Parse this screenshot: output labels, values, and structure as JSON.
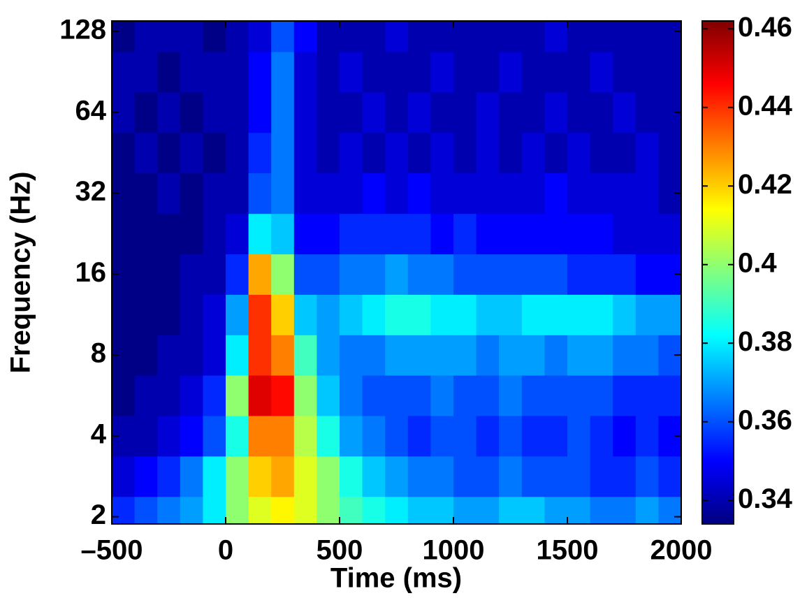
{
  "chart_data": {
    "type": "heatmap",
    "xlabel": "Time (ms)",
    "ylabel": "Frequency (Hz)",
    "xlim": [
      -500,
      2000
    ],
    "xticks": [
      {
        "value": -500,
        "label": "–500"
      },
      0,
      500,
      1000,
      1500,
      2000
    ],
    "ylim": [
      1.88,
      140
    ],
    "yticks": [
      2,
      4,
      8,
      16,
      32,
      64,
      128
    ],
    "ylog": true,
    "colormap": "jet",
    "clim": [
      0.334,
      0.462
    ],
    "cticks": [
      0.34,
      0.36,
      0.38,
      0.4,
      0.42,
      0.44,
      0.46
    ],
    "x": [
      -450,
      -350,
      -250,
      -150,
      -50,
      50,
      150,
      250,
      350,
      450,
      550,
      650,
      750,
      850,
      950,
      1050,
      1150,
      1250,
      1350,
      1450,
      1550,
      1650,
      1750,
      1850,
      1950
    ],
    "y": [
      2,
      2.83,
      4,
      5.66,
      8,
      11.3,
      16,
      22.6,
      32,
      45.3,
      64,
      90.5,
      128
    ],
    "z": [
      [
        0.355,
        0.36,
        0.365,
        0.37,
        0.38,
        0.4,
        0.41,
        0.415,
        0.41,
        0.4,
        0.39,
        0.385,
        0.38,
        0.375,
        0.375,
        0.37,
        0.37,
        0.375,
        0.375,
        0.37,
        0.37,
        0.365,
        0.365,
        0.37,
        0.365
      ],
      [
        0.345,
        0.35,
        0.355,
        0.365,
        0.38,
        0.4,
        0.42,
        0.425,
        0.41,
        0.4,
        0.385,
        0.375,
        0.37,
        0.365,
        0.365,
        0.36,
        0.36,
        0.365,
        0.36,
        0.36,
        0.36,
        0.355,
        0.355,
        0.36,
        0.355
      ],
      [
        0.34,
        0.34,
        0.345,
        0.35,
        0.36,
        0.385,
        0.43,
        0.43,
        0.405,
        0.385,
        0.37,
        0.365,
        0.36,
        0.355,
        0.36,
        0.36,
        0.355,
        0.36,
        0.355,
        0.355,
        0.36,
        0.355,
        0.35,
        0.355,
        0.35
      ],
      [
        0.335,
        0.34,
        0.34,
        0.345,
        0.355,
        0.4,
        0.45,
        0.445,
        0.4,
        0.375,
        0.365,
        0.36,
        0.36,
        0.36,
        0.365,
        0.36,
        0.36,
        0.365,
        0.36,
        0.36,
        0.36,
        0.36,
        0.355,
        0.355,
        0.355
      ],
      [
        0.335,
        0.335,
        0.34,
        0.34,
        0.345,
        0.38,
        0.44,
        0.43,
        0.39,
        0.37,
        0.365,
        0.365,
        0.37,
        0.37,
        0.37,
        0.37,
        0.365,
        0.37,
        0.37,
        0.365,
        0.37,
        0.37,
        0.365,
        0.365,
        0.36
      ],
      [
        0.335,
        0.335,
        0.335,
        0.34,
        0.345,
        0.37,
        0.44,
        0.42,
        0.375,
        0.37,
        0.375,
        0.38,
        0.385,
        0.385,
        0.38,
        0.38,
        0.375,
        0.375,
        0.38,
        0.38,
        0.38,
        0.38,
        0.375,
        0.37,
        0.37
      ],
      [
        0.335,
        0.335,
        0.335,
        0.34,
        0.34,
        0.355,
        0.425,
        0.4,
        0.36,
        0.36,
        0.365,
        0.365,
        0.37,
        0.365,
        0.365,
        0.36,
        0.36,
        0.36,
        0.36,
        0.36,
        0.355,
        0.355,
        0.355,
        0.35,
        0.35
      ],
      [
        0.335,
        0.335,
        0.335,
        0.335,
        0.34,
        0.345,
        0.38,
        0.375,
        0.35,
        0.35,
        0.355,
        0.355,
        0.355,
        0.355,
        0.35,
        0.355,
        0.35,
        0.35,
        0.35,
        0.35,
        0.35,
        0.35,
        0.345,
        0.345,
        0.345
      ],
      [
        0.335,
        0.335,
        0.34,
        0.335,
        0.34,
        0.34,
        0.36,
        0.365,
        0.345,
        0.345,
        0.345,
        0.35,
        0.345,
        0.35,
        0.345,
        0.345,
        0.345,
        0.345,
        0.345,
        0.35,
        0.345,
        0.345,
        0.345,
        0.345,
        0.34
      ],
      [
        0.335,
        0.34,
        0.335,
        0.34,
        0.335,
        0.34,
        0.355,
        0.365,
        0.345,
        0.34,
        0.345,
        0.34,
        0.345,
        0.34,
        0.345,
        0.34,
        0.345,
        0.34,
        0.345,
        0.34,
        0.345,
        0.34,
        0.34,
        0.345,
        0.34
      ],
      [
        0.34,
        0.335,
        0.34,
        0.335,
        0.34,
        0.34,
        0.35,
        0.365,
        0.345,
        0.34,
        0.34,
        0.345,
        0.34,
        0.345,
        0.34,
        0.34,
        0.345,
        0.34,
        0.34,
        0.345,
        0.34,
        0.34,
        0.345,
        0.34,
        0.34
      ],
      [
        0.34,
        0.34,
        0.335,
        0.34,
        0.34,
        0.34,
        0.35,
        0.365,
        0.345,
        0.34,
        0.345,
        0.34,
        0.34,
        0.34,
        0.345,
        0.34,
        0.34,
        0.345,
        0.34,
        0.34,
        0.34,
        0.345,
        0.34,
        0.34,
        0.34
      ],
      [
        0.335,
        0.34,
        0.34,
        0.34,
        0.335,
        0.34,
        0.345,
        0.36,
        0.35,
        0.34,
        0.34,
        0.34,
        0.345,
        0.34,
        0.34,
        0.34,
        0.34,
        0.34,
        0.34,
        0.345,
        0.34,
        0.34,
        0.34,
        0.34,
        0.34
      ]
    ]
  }
}
